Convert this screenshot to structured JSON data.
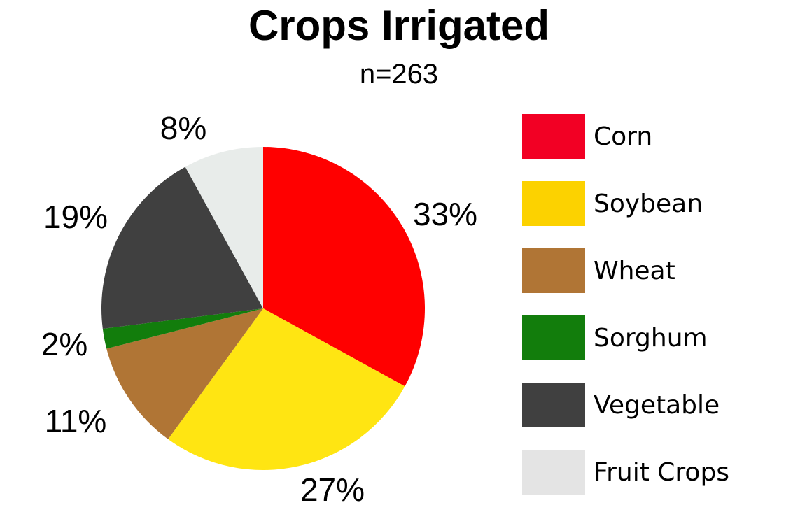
{
  "chart_data": {
    "type": "pie",
    "title": "Crops Irrigated",
    "subtitle": "n=263",
    "legend_position": "right",
    "categories": [
      "Corn",
      "Soybean",
      "Wheat",
      "Sorghum",
      "Vegetable",
      "Fruit Crops"
    ],
    "values": [
      33,
      27,
      11,
      2,
      19,
      8
    ],
    "data_labels": [
      "33%",
      "27%",
      "11%",
      "2%",
      "19%",
      "8%"
    ],
    "slice_colors": [
      "#ff0000",
      "#ffe512",
      "#b07535",
      "#127d0c",
      "#404040",
      "#e8ecea"
    ],
    "legend_colors": [
      "#f20024",
      "#fcd200",
      "#b07535",
      "#127d0c",
      "#404040",
      "#e4e4e4"
    ]
  }
}
